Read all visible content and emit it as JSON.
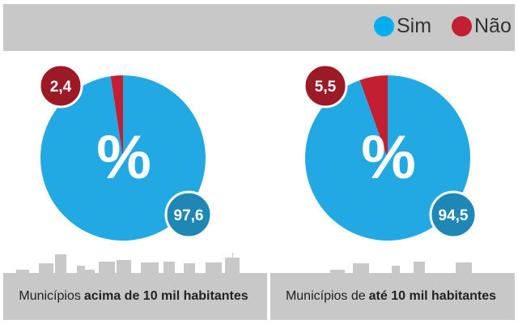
{
  "legend": [
    {
      "label": "Sim",
      "color": "#22a8e2"
    },
    {
      "label": "Não",
      "color": "#c21f32"
    }
  ],
  "chart_data": [
    {
      "type": "pie",
      "title": "Municípios acima de 10 mil habitantes",
      "center_label": "%",
      "slices": [
        {
          "label": "Sim",
          "value": 97.6,
          "display": "97,6"
        },
        {
          "label": "Não",
          "value": 2.4,
          "display": "2,4"
        }
      ]
    },
    {
      "type": "pie",
      "title": "Municípios de até 10 mil habitantes",
      "center_label": "%",
      "slices": [
        {
          "label": "Sim",
          "value": 94.5,
          "display": "94,5"
        },
        {
          "label": "Não",
          "value": 5.5,
          "display": "5,5"
        }
      ]
    }
  ],
  "panels": [
    {
      "pre": "Municípios",
      "bold": "acima de 10 mil habitantes",
      "post": ""
    },
    {
      "pre": "Municípios de",
      "bold": "até 10 mil habitantes",
      "post": ""
    }
  ]
}
